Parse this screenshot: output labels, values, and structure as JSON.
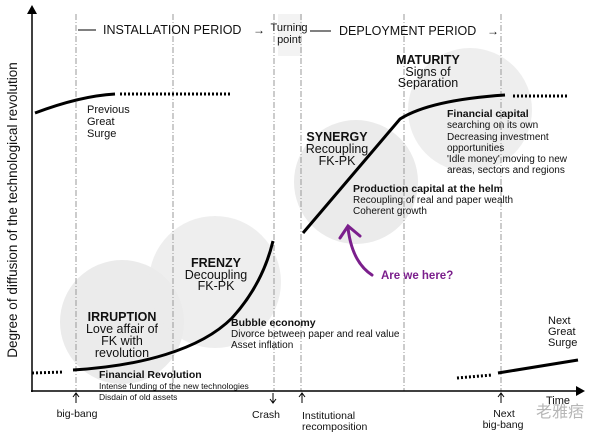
{
  "axes": {
    "y_label": "Degree of diffusion of the technological revolution",
    "x_label": "Time"
  },
  "periods": {
    "installation": "INSTALLATION PERIOD",
    "turning_point": [
      "Turning",
      "point"
    ],
    "deployment": "DEPLOYMENT PERIOD"
  },
  "phases": {
    "previous": [
      "Previous",
      "Great",
      "Surge"
    ],
    "irruption": {
      "title": "IRRUPTION",
      "lines": [
        "Love affair of",
        "FK with",
        "revolution"
      ]
    },
    "frenzy": {
      "title": "FRENZY",
      "lines": [
        "Decoupling",
        "FK-PK"
      ]
    },
    "synergy": {
      "title": "SYNERGY",
      "lines": [
        "Recoupling",
        "FK-PK"
      ]
    },
    "maturity": {
      "title": "MATURITY",
      "lines": [
        "Signs of",
        "Separation"
      ]
    },
    "next": [
      "Next",
      "Great",
      "Surge"
    ]
  },
  "notes": {
    "financial_revolution": {
      "title": "Financial Revolution",
      "lines": [
        "Intense funding of the new technologies",
        "Disdain of old assets"
      ]
    },
    "bubble": {
      "title": "Bubble economy",
      "lines": [
        "Divorce between paper and real value",
        "Asset inflation"
      ]
    },
    "production": {
      "title": "Production capital at the helm",
      "lines": [
        "Recoupling of real and paper wealth",
        "Coherent growth"
      ]
    },
    "financial_capital": {
      "title": "Financial capital",
      "lines": [
        "searching on its own",
        "Decreasing investment",
        "opportunities",
        "'Idle money' moving to new",
        "areas, sectors and regions"
      ]
    }
  },
  "events": {
    "big_bang": "big-bang",
    "crash": "Crash",
    "institutional": [
      "Institutional",
      "recomposition"
    ],
    "next_big_bang": [
      "Next",
      "big-bang"
    ]
  },
  "annotation": {
    "text": "Are we here?",
    "color": "#7b1f8c"
  },
  "watermark": "老雅痞"
}
